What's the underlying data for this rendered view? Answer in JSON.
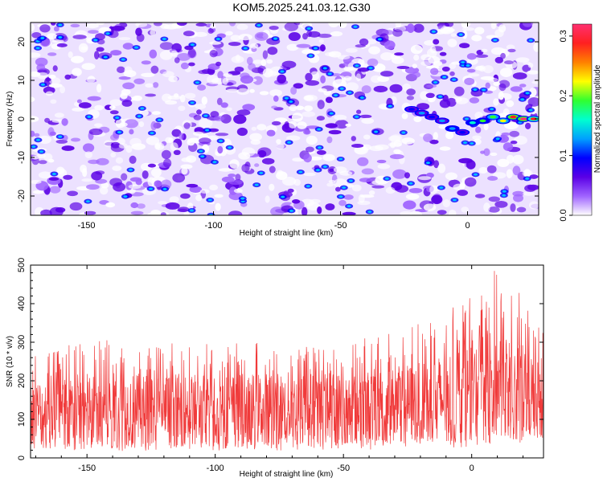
{
  "figure": {
    "title": "KOM5.2025.241.03.12.G30"
  },
  "colors": {
    "snr_line": "#f03a3a",
    "colormap": [
      "#ffffff",
      "#a064ff",
      "#5a00e6",
      "#0000ff",
      "#00a0ff",
      "#00ffd0",
      "#30ff30",
      "#ffff00",
      "#ff8000",
      "#ff2020",
      "#ff3070"
    ]
  },
  "chart_data": [
    {
      "type": "heatmap",
      "title": "",
      "xlabel": "Height of straight line (km)",
      "ylabel": "Frequency (Hz)",
      "xlim": [
        -172,
        28
      ],
      "ylim": [
        -25,
        25
      ],
      "xticks": [
        -150,
        -100,
        -50,
        0
      ],
      "yticks": [
        -20,
        -10,
        0,
        10,
        20
      ],
      "colorbar": {
        "label": "Normalized spectral amplitude",
        "range": [
          0,
          0.32
        ],
        "ticks": [
          0.0,
          0.1,
          0.2,
          0.3
        ]
      },
      "signal_track": {
        "description": "strong narrowband energy near 0 Hz",
        "x": [
          -22,
          -18,
          -14,
          -10,
          -6,
          -2,
          2,
          6,
          10,
          14,
          18,
          22,
          26
        ],
        "frequency_hz": [
          2.5,
          1.5,
          0.5,
          -0.5,
          -2.5,
          -3.5,
          -1.0,
          -0.5,
          0.5,
          -0.5,
          0.5,
          0.0,
          0.0
        ],
        "amplitude": [
          0.1,
          0.12,
          0.11,
          0.13,
          0.14,
          0.1,
          0.16,
          0.18,
          0.2,
          0.22,
          0.3,
          0.32,
          0.28
        ]
      },
      "background_amplitude_range": [
        0.0,
        0.12
      ]
    },
    {
      "type": "line",
      "title": "",
      "xlabel": "Height of straight line (km)",
      "ylabel": "SNR (10 * v/v)",
      "xlim": [
        -172,
        28
      ],
      "ylim": [
        0,
        500
      ],
      "xticks": [
        -150,
        -100,
        -50,
        0
      ],
      "yticks": [
        0,
        100,
        200,
        300,
        400,
        500
      ],
      "series": [
        {
          "x_start": -172,
          "x_end": 28,
          "envelope_x": [
            -170,
            -150,
            -130,
            -110,
            -90,
            -70,
            -50,
            -30,
            -20,
            -10,
            0,
            10,
            20,
            28
          ],
          "envelope_low": [
            30,
            30,
            30,
            30,
            30,
            30,
            30,
            40,
            40,
            40,
            50,
            60,
            60,
            40
          ],
          "envelope_high": [
            270,
            310,
            300,
            300,
            300,
            300,
            300,
            330,
            350,
            380,
            420,
            500,
            420,
            330
          ],
          "mean": [
            120,
            125,
            125,
            125,
            125,
            130,
            130,
            135,
            145,
            155,
            175,
            195,
            170,
            150
          ]
        }
      ]
    }
  ]
}
